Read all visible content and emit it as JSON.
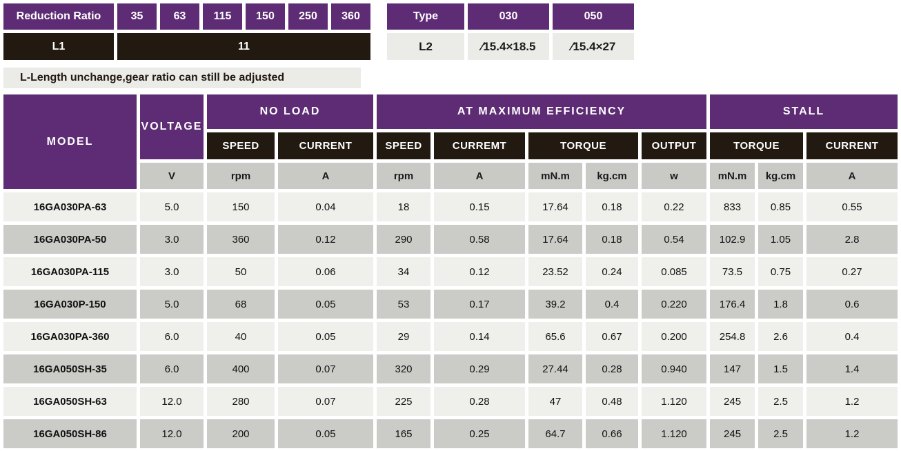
{
  "reduction_table": {
    "header_label": "Reduction Ratio",
    "ratios": [
      "35",
      "63",
      "115",
      "150",
      "250",
      "360"
    ],
    "l1_label": "L1",
    "l1_value": "11",
    "note": "L-Length unchange,gear ratio can still be adjusted"
  },
  "type_table": {
    "header_label": "Type",
    "types": [
      "030",
      "050"
    ],
    "l2_label": "L2",
    "l2_values": [
      "∕15.4×18.5",
      "∕15.4×27"
    ]
  },
  "main_table": {
    "group_headers": {
      "model": "MODEL",
      "voltage": "VOLTAGE",
      "no_load": "NO LOAD",
      "max_efficiency": "AT MAXIMUM EFFICIENCY",
      "stall": "STALL"
    },
    "sub_headers": [
      "SPEED",
      "CURRENT",
      "SPEED",
      "CURREMT",
      "TORQUE",
      "OUTPUT",
      "TORQUE",
      "CURRENT"
    ],
    "units": [
      "V",
      "rpm",
      "A",
      "rpm",
      "A",
      "mN.m",
      "kg.cm",
      "w",
      "mN.m",
      "kg.cm",
      "A"
    ],
    "rows": [
      {
        "model": "16GA030PA-63",
        "values": [
          "5.0",
          "150",
          "0.04",
          "18",
          "0.15",
          "17.64",
          "0.18",
          "0.22",
          "833",
          "0.85",
          "0.55"
        ]
      },
      {
        "model": "16GA030PA-50",
        "values": [
          "3.0",
          "360",
          "0.12",
          "290",
          "0.58",
          "17.64",
          "0.18",
          "0.54",
          "102.9",
          "1.05",
          "2.8"
        ]
      },
      {
        "model": "16GA030PA-115",
        "values": [
          "3.0",
          "50",
          "0.06",
          "34",
          "0.12",
          "23.52",
          "0.24",
          "0.085",
          "73.5",
          "0.75",
          "0.27"
        ]
      },
      {
        "model": "16GA030P-150",
        "values": [
          "5.0",
          "68",
          "0.05",
          "53",
          "0.17",
          "39.2",
          "0.4",
          "0.220",
          "176.4",
          "1.8",
          "0.6"
        ]
      },
      {
        "model": "16GA030PA-360",
        "values": [
          "6.0",
          "40",
          "0.05",
          "29",
          "0.14",
          "65.6",
          "0.67",
          "0.200",
          "254.8",
          "2.6",
          "0.4"
        ]
      },
      {
        "model": "16GA050SH-35",
        "values": [
          "6.0",
          "400",
          "0.07",
          "320",
          "0.29",
          "27.44",
          "0.28",
          "0.940",
          "147",
          "1.5",
          "1.4"
        ]
      },
      {
        "model": "16GA050SH-63",
        "values": [
          "12.0",
          "280",
          "0.07",
          "225",
          "0.28",
          "47",
          "0.48",
          "1.120",
          "245",
          "2.5",
          "1.2"
        ]
      },
      {
        "model": "16GA050SH-86",
        "values": [
          "12.0",
          "200",
          "0.05",
          "165",
          "0.25",
          "64.7",
          "0.66",
          "1.120",
          "245",
          "2.5",
          "1.2"
        ]
      }
    ]
  },
  "colors": {
    "header_purple": "#5e2c74",
    "header_black": "#221911",
    "unit_row_gray": "#c9c9c6",
    "row_light": "#efefec",
    "row_dark": "#cbcbc8",
    "note_background": "#ebebe8"
  }
}
